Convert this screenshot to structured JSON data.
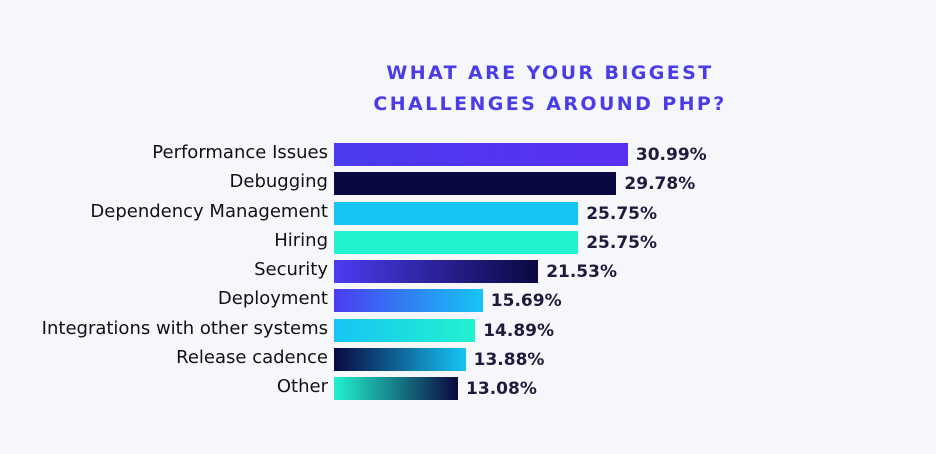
{
  "chart_data": {
    "type": "bar",
    "orientation": "horizontal",
    "title_lines": [
      "WHAT ARE YOUR BIGGEST",
      "CHALLENGES AROUND PHP?"
    ],
    "categories": [
      "Performance Issues",
      "Debugging",
      "Dependency Management",
      "Hiring",
      "Security",
      "Deployment",
      "Integrations with other systems",
      "Release cadence",
      "Other"
    ],
    "values": [
      30.99,
      29.78,
      25.75,
      25.75,
      21.53,
      15.69,
      14.89,
      13.88,
      13.08
    ],
    "value_labels": [
      "30.99%",
      "29.78%",
      "25.75%",
      "25.75%",
      "21.53%",
      "15.69%",
      "14.89%",
      "13.88%",
      "13.08%"
    ],
    "bar_colors": [
      [
        "#4b3cf0",
        "#5a2ff2"
      ],
      [
        "#0a0840",
        "#0a0840"
      ],
      [
        "#16c5f5",
        "#16c5f5"
      ],
      [
        "#22f2cf",
        "#22f2cf"
      ],
      [
        "#4b3cf0",
        "#0a0840"
      ],
      [
        "#4b3cf0",
        "#16c5f5"
      ],
      [
        "#16c5f5",
        "#22f2cf"
      ],
      [
        "#0a0840",
        "#16c5f5"
      ],
      [
        "#22f2cf",
        "#0a0840"
      ]
    ],
    "grid": false,
    "legend": "none",
    "xlim": [
      0,
      31
    ]
  }
}
